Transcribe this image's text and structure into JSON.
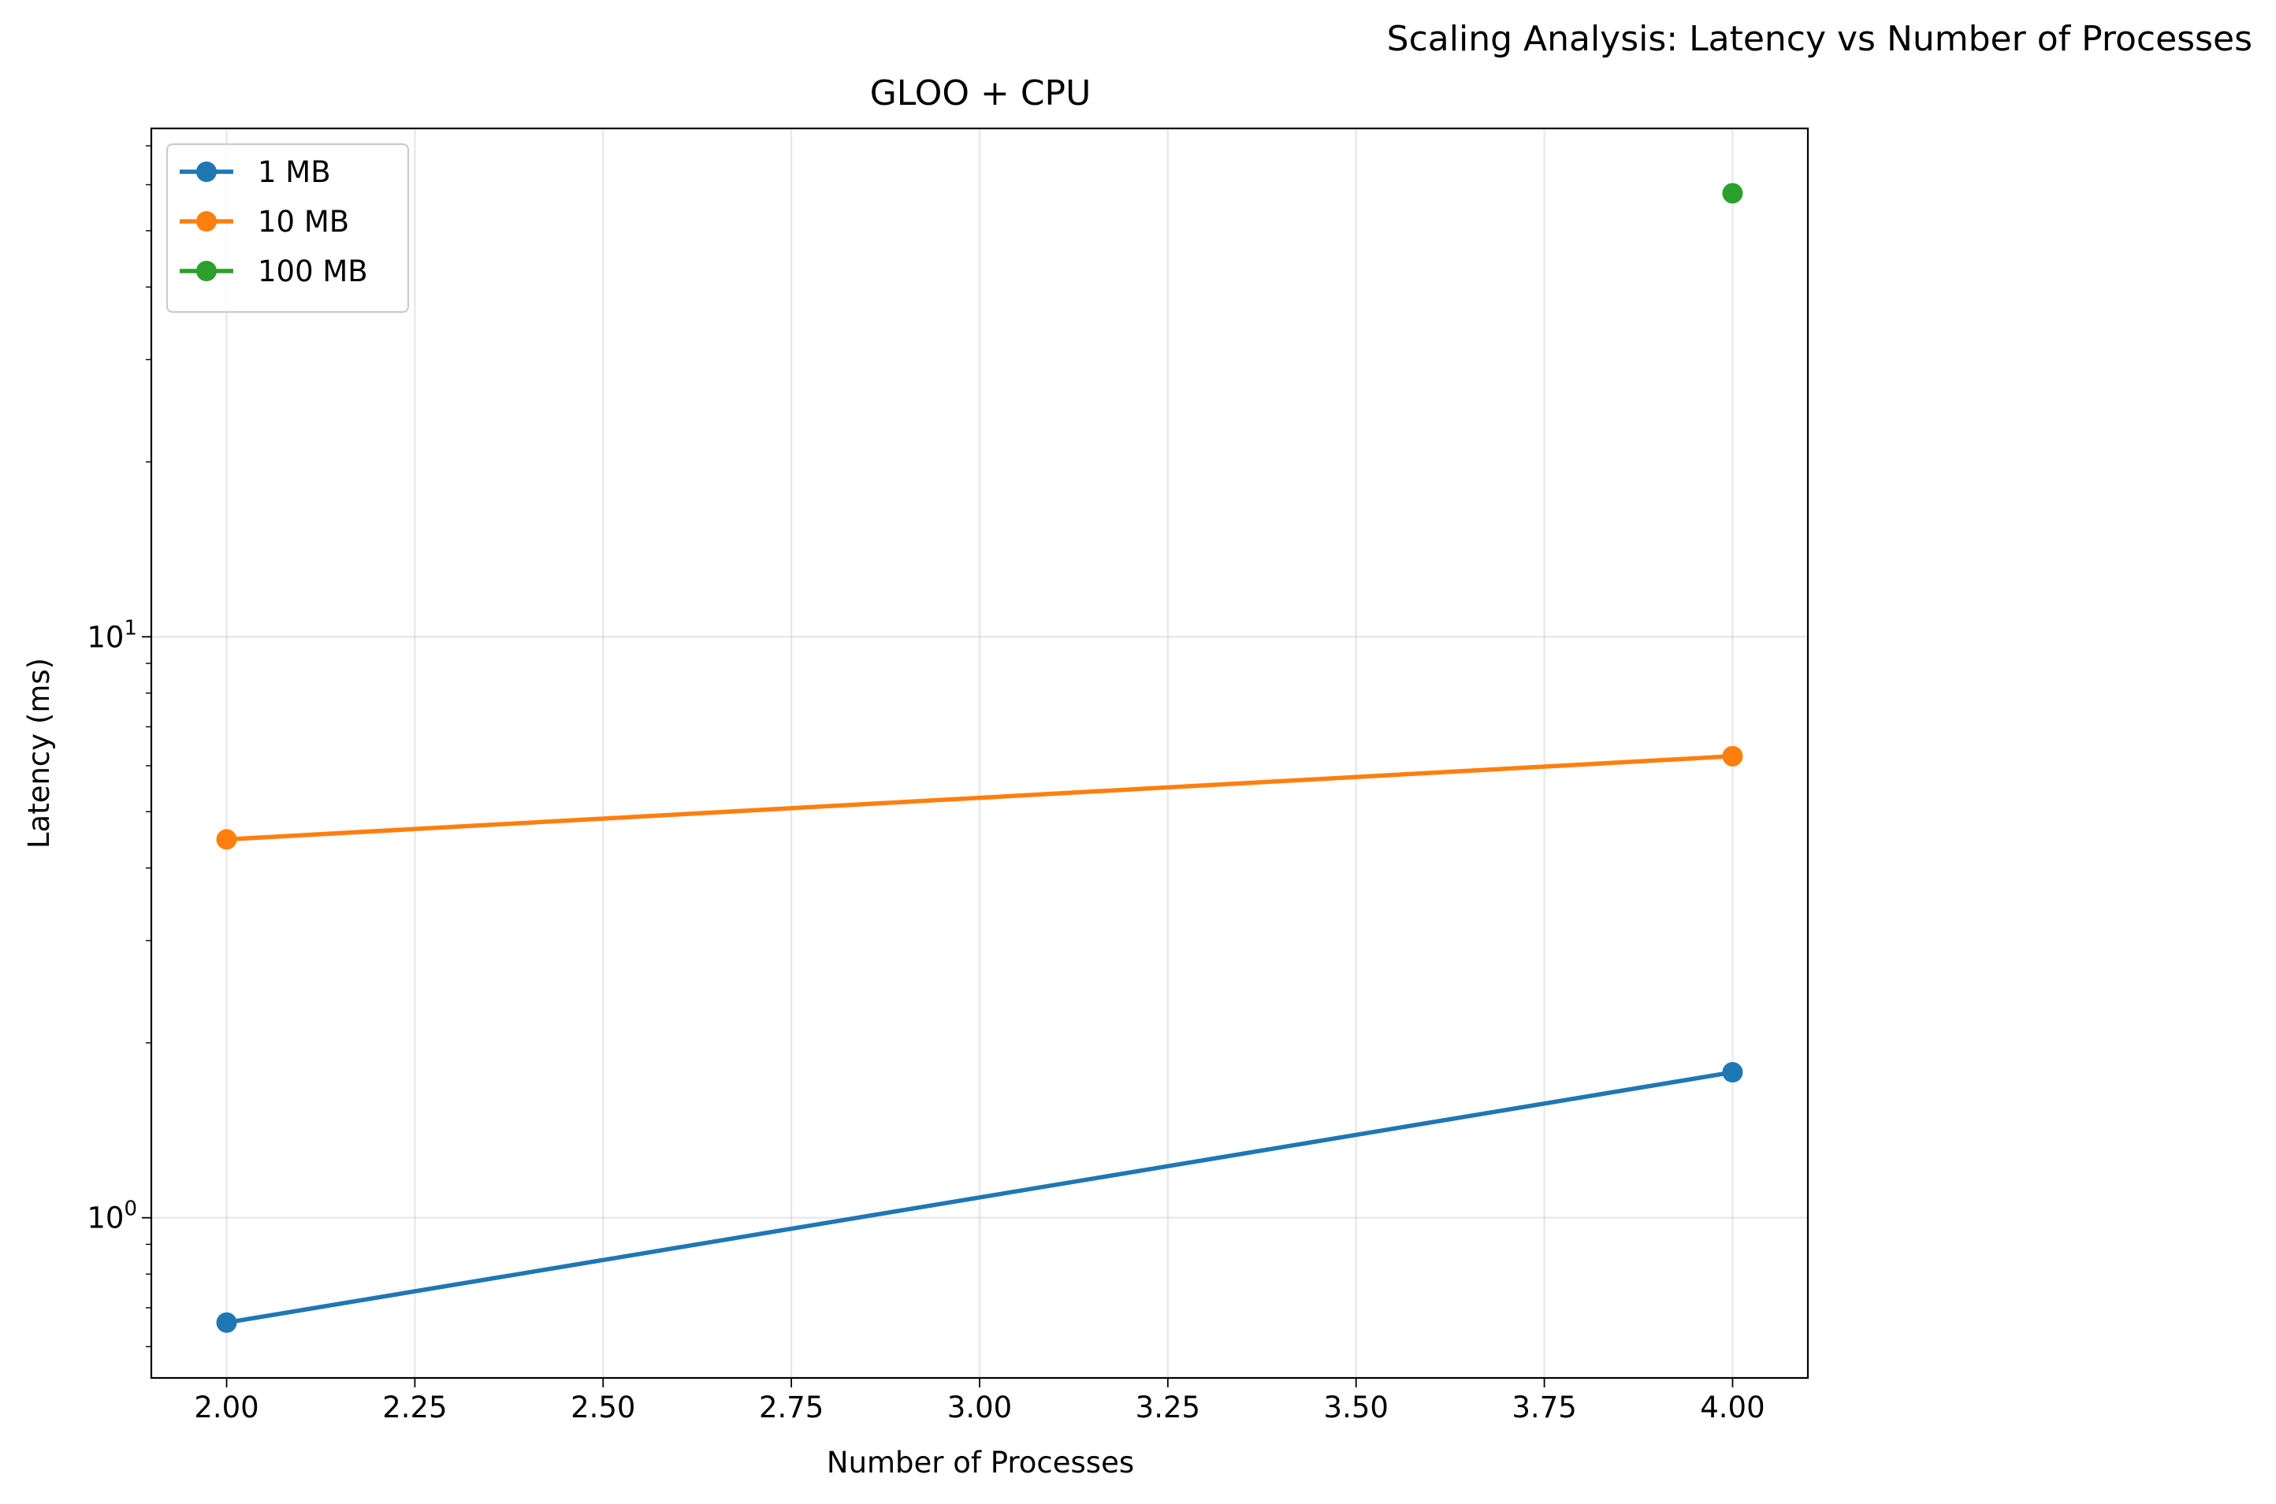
{
  "suptitle": "Scaling Analysis: Latency vs Number of Processes",
  "chart_data": {
    "type": "line",
    "title": "GLOO + CPU",
    "xlabel": "Number of Processes",
    "ylabel": "Latency (ms)",
    "xlim": [
      1.9,
      4.1
    ],
    "ylim": [
      0.53,
      75
    ],
    "yscale": "log",
    "grid": true,
    "legend_position": "top-left",
    "x_ticks": [
      2.0,
      2.25,
      2.5,
      2.75,
      3.0,
      3.25,
      3.5,
      3.75,
      4.0
    ],
    "x_tick_labels": [
      "2.00",
      "2.25",
      "2.50",
      "2.75",
      "3.00",
      "3.25",
      "3.50",
      "3.75",
      "4.00"
    ],
    "y_ticks": [
      1,
      10
    ],
    "y_tick_labels": [
      {
        "base": "10",
        "exp": "0"
      },
      {
        "base": "10",
        "exp": "1"
      }
    ],
    "series": [
      {
        "name": "1 MB",
        "color": "#1f77b4",
        "x": [
          2,
          4
        ],
        "y": [
          0.66,
          1.78
        ]
      },
      {
        "name": "10 MB",
        "color": "#ff7f0e",
        "x": [
          2,
          4
        ],
        "y": [
          4.48,
          6.23
        ]
      },
      {
        "name": "100 MB",
        "color": "#2ca02c",
        "x": [
          4
        ],
        "y": [
          58.0
        ]
      }
    ]
  }
}
